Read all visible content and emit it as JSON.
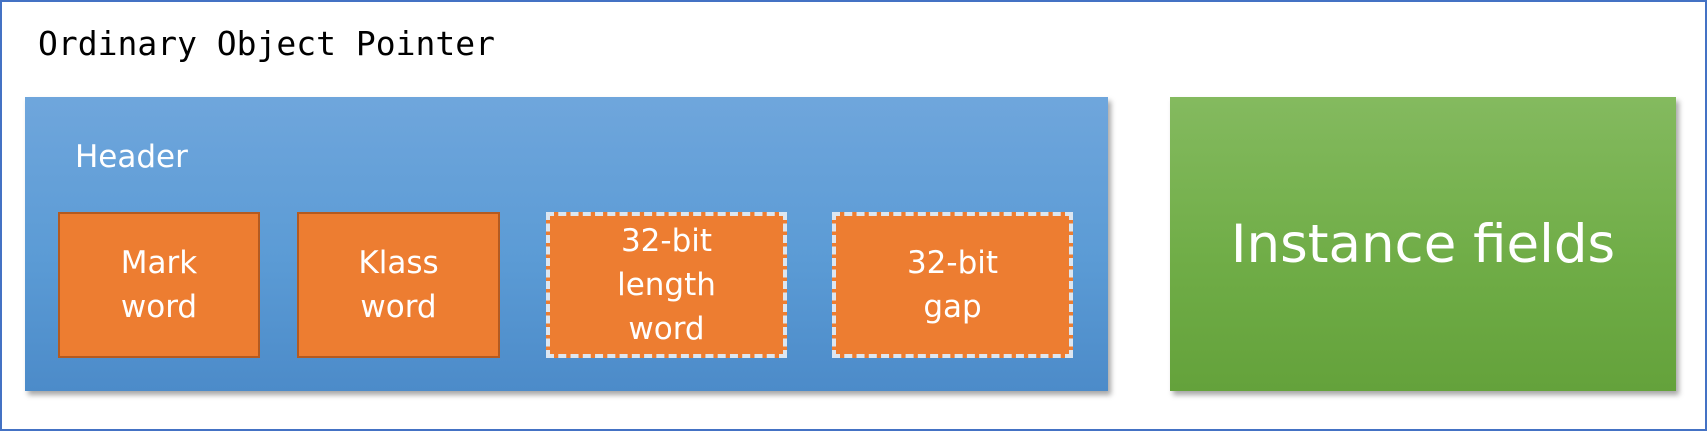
{
  "title": "Ordinary Object Pointer",
  "header": {
    "label": "Header",
    "words": [
      {
        "text": "Mark\nword",
        "style": "solid"
      },
      {
        "text": "Klass\nword",
        "style": "solid"
      },
      {
        "text": "32-bit\nlength\nword",
        "style": "dashed"
      },
      {
        "text": "32-bit\ngap",
        "style": "dashed"
      }
    ]
  },
  "instance_fields": {
    "label": "Instance fields"
  },
  "colors": {
    "border": "#4472c4",
    "header_fill": "#5b9bd5",
    "word_fill": "#ed7d31",
    "fields_fill": "#70ad47"
  }
}
